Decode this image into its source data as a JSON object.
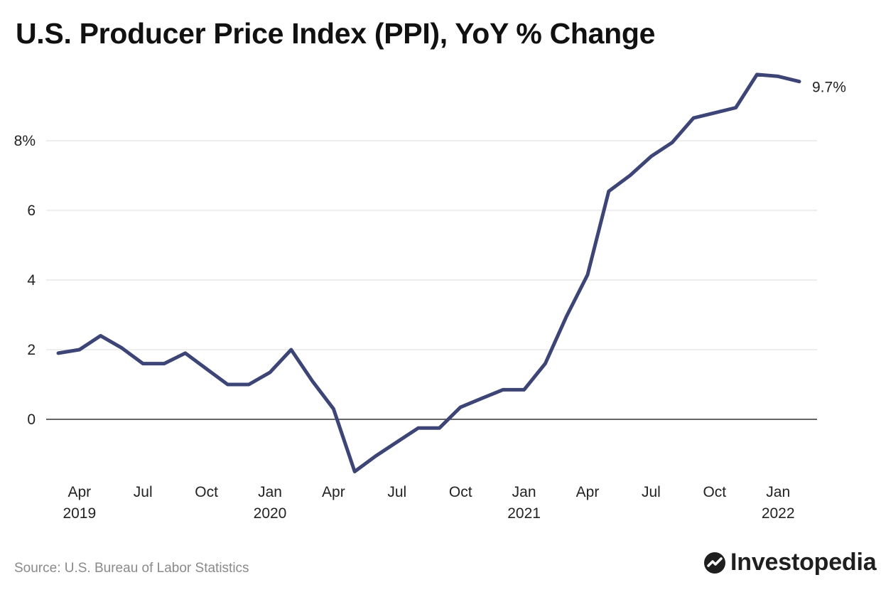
{
  "title": "U.S. Producer Price Index (PPI), YoY % Change",
  "source": "Source: U.S. Bureau of Labor Statistics",
  "brand": {
    "name": "Investopedia",
    "logo_icon": "investopedia-logo-icon"
  },
  "colors": {
    "line": "#3d4576",
    "grid": "#dddddd",
    "zero_line": "#333333",
    "text": "#222222",
    "source": "#8a8a8a"
  },
  "chart_data": {
    "type": "line",
    "title": "U.S. Producer Price Index (PPI), YoY % Change",
    "xlabel": "",
    "ylabel": "",
    "grid": true,
    "ylim": [
      -1.6,
      10
    ],
    "y_ticks": [
      0,
      2,
      4,
      6,
      8
    ],
    "y_tick_labels": [
      "0",
      "2",
      "4",
      "6",
      "8%"
    ],
    "x_ticks": [
      {
        "month": "2019-04",
        "label": "Apr",
        "year_label": "2019"
      },
      {
        "month": "2019-07",
        "label": "Jul",
        "year_label": ""
      },
      {
        "month": "2019-10",
        "label": "Oct",
        "year_label": ""
      },
      {
        "month": "2020-01",
        "label": "Jan",
        "year_label": "2020"
      },
      {
        "month": "2020-04",
        "label": "Apr",
        "year_label": ""
      },
      {
        "month": "2020-07",
        "label": "Jul",
        "year_label": ""
      },
      {
        "month": "2020-10",
        "label": "Oct",
        "year_label": ""
      },
      {
        "month": "2021-01",
        "label": "Jan",
        "year_label": "2021"
      },
      {
        "month": "2021-04",
        "label": "Apr",
        "year_label": ""
      },
      {
        "month": "2021-07",
        "label": "Jul",
        "year_label": ""
      },
      {
        "month": "2021-10",
        "label": "Oct",
        "year_label": ""
      },
      {
        "month": "2022-01",
        "label": "Jan",
        "year_label": "2022"
      }
    ],
    "end_label": "9.7%",
    "series": [
      {
        "x": [
          "2019-03",
          "2019-04",
          "2019-05",
          "2019-06",
          "2019-07",
          "2019-08",
          "2019-09",
          "2019-10",
          "2019-11",
          "2019-12",
          "2020-01",
          "2020-02",
          "2020-03",
          "2020-04",
          "2020-05",
          "2020-06",
          "2020-07",
          "2020-08",
          "2020-09",
          "2020-10",
          "2020-11",
          "2020-12",
          "2021-01",
          "2021-02",
          "2021-03",
          "2021-04",
          "2021-05",
          "2021-06",
          "2021-07",
          "2021-08",
          "2021-09",
          "2021-10",
          "2021-11",
          "2021-12",
          "2022-01",
          "2022-02"
        ],
        "values": [
          1.9,
          2.0,
          2.4,
          2.05,
          1.6,
          1.6,
          1.9,
          1.45,
          1.0,
          1.0,
          1.35,
          2.0,
          1.1,
          0.3,
          -1.5,
          -1.05,
          -0.65,
          -0.25,
          -0.25,
          0.35,
          0.6,
          0.85,
          0.85,
          1.6,
          2.95,
          4.15,
          6.55,
          7.0,
          7.55,
          7.95,
          8.65,
          8.8,
          8.95,
          9.9,
          9.85,
          9.7
        ]
      }
    ]
  }
}
